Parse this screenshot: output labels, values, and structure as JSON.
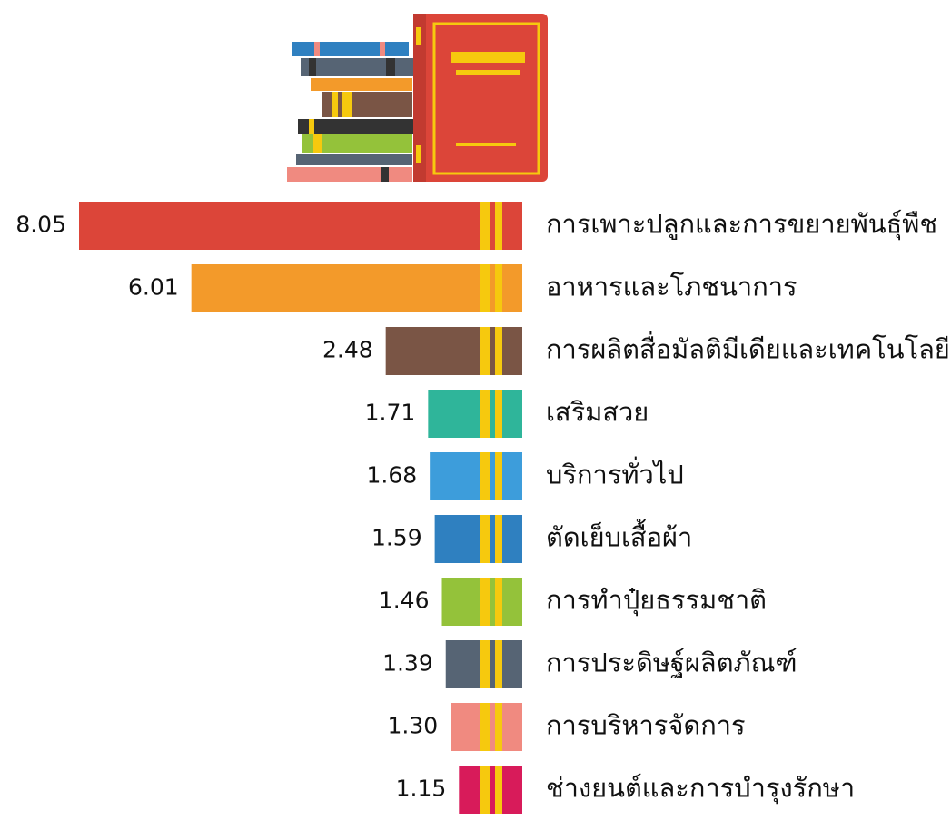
{
  "chart_data": {
    "type": "bar",
    "categories": [
      "การเพาะปลูกและการขยายพันธุ์พืช",
      "อาหารและโภชนาการ",
      "การผลิตสื่อมัลติมีเดียและเทคโนโลยี",
      "เสริมสวย",
      "บริการทั่วไป",
      "ตัดเย็บเสื้อผ้า",
      "การทำปุ๋ยธรรมชาติ",
      "การประดิษฐ์ผลิตภัณฑ์",
      "การบริหารจัดการ",
      "ช่างยนต์และการบำรุงรักษา"
    ],
    "values": [
      8.05,
      6.01,
      2.48,
      1.71,
      1.68,
      1.59,
      1.46,
      1.39,
      1.3,
      1.15
    ],
    "value_labels": [
      "8.05",
      "6.01",
      "2.48",
      "1.71",
      "1.68",
      "1.59",
      "1.46",
      "1.39",
      "1.30",
      "1.15"
    ],
    "colors": [
      "#dc4539",
      "#f39a2a",
      "#7a5545",
      "#2fb59a",
      "#3d9ddb",
      "#2f80c0",
      "#94c23a",
      "#566474",
      "#f08a80",
      "#d81b5a"
    ]
  }
}
